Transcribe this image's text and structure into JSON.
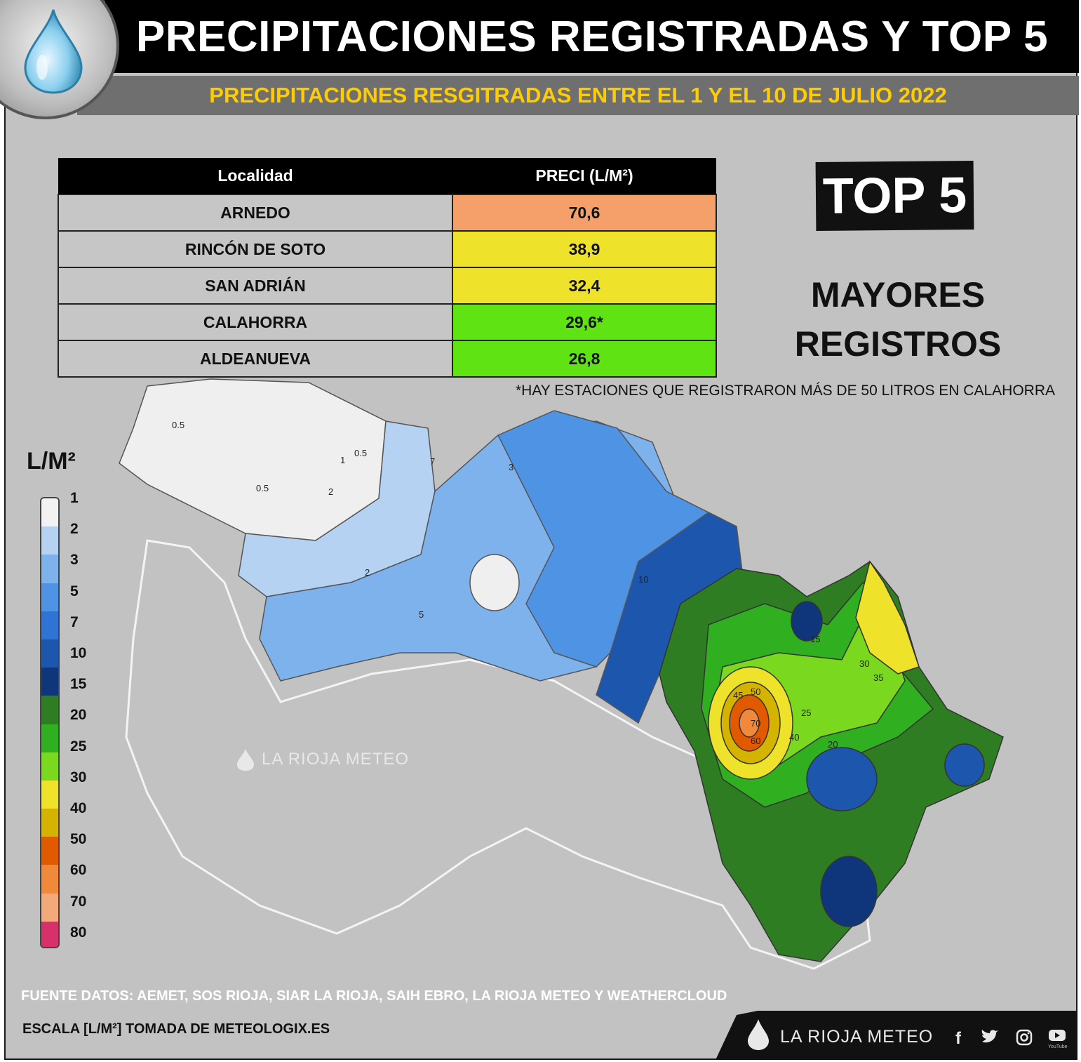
{
  "header": {
    "title": "PRECIPITACIONES REGISTRADAS Y TOP 5",
    "subtitle": "PRECIPITACIONES RESGITRADAS ENTRE EL 1 Y EL 10 DE JULIO 2022"
  },
  "table": {
    "col_location": "Localidad",
    "col_precip": "PRECI (L/M²)",
    "rows": [
      {
        "location": "ARNEDO",
        "value": "70,6",
        "color": "#f5a06a"
      },
      {
        "location": "RINCÓN DE SOTO",
        "value": "38,9",
        "color": "#eee22a"
      },
      {
        "location": "SAN ADRIÁN",
        "value": "32,4",
        "color": "#eee22a"
      },
      {
        "location": "CALAHORRA",
        "value": "29,6*",
        "color": "#5fe313"
      },
      {
        "location": "ALDEANUEVA",
        "value": "26,8",
        "color": "#5fe313"
      }
    ]
  },
  "badge": {
    "top5": "TOP 5",
    "line1": "MAYORES",
    "line2": "REGISTROS"
  },
  "note": "*HAY ESTACIONES QUE REGISTRARON MÁS DE 50 LITROS EN CALAHORRA",
  "legend": {
    "title": "L/M²",
    "items": [
      {
        "label": "1",
        "color": "#f2f2f2"
      },
      {
        "label": "2",
        "color": "#b6d2f2"
      },
      {
        "label": "3",
        "color": "#7eb2ec"
      },
      {
        "label": "5",
        "color": "#4f93e4"
      },
      {
        "label": "7",
        "color": "#2f74d4"
      },
      {
        "label": "10",
        "color": "#1d56ad"
      },
      {
        "label": "15",
        "color": "#0f357a"
      },
      {
        "label": "20",
        "color": "#2e7d22"
      },
      {
        "label": "25",
        "color": "#30b020"
      },
      {
        "label": "30",
        "color": "#7ad91e"
      },
      {
        "label": "40",
        "color": "#eee22a"
      },
      {
        "label": "50",
        "color": "#d4b400"
      },
      {
        "label": "60",
        "color": "#e25a00"
      },
      {
        "label": "70",
        "color": "#f08a3a"
      },
      {
        "label": "80",
        "color": "#f3a97a"
      },
      {
        "label": "",
        "color": "#d8306a"
      }
    ]
  },
  "map_labels": {
    "iso_05": "0.5",
    "iso_1": "1",
    "iso_2": "2",
    "iso_3": "3",
    "iso_5": "5",
    "iso_7": "7",
    "iso_10": "10",
    "iso_15": "15",
    "iso_20": "20",
    "iso_25": "25",
    "iso_30": "30",
    "iso_35": "35",
    "iso_40": "40",
    "iso_45": "45",
    "iso_50": "50",
    "iso_60": "60",
    "iso_70": "70"
  },
  "watermark": "LA RIOJA METEO",
  "source": "FUENTE DATOS: AEMET, SOS RIOJA, SIAR LA RIOJA, SAIH EBRO, LA RIOJA METEO  Y WEATHERCLOUD",
  "scale_note": "ESCALA [L/M²] TOMADA DE METEOLOGIX.ES",
  "footer": {
    "brand": "LA RIOJA METEO",
    "facebook": "f",
    "youtube_caption": "YouTube"
  },
  "colors": {
    "title_bg": "#000000",
    "subtitle_text": "#ffcc00",
    "frame_bg": "#c2c2c2"
  }
}
